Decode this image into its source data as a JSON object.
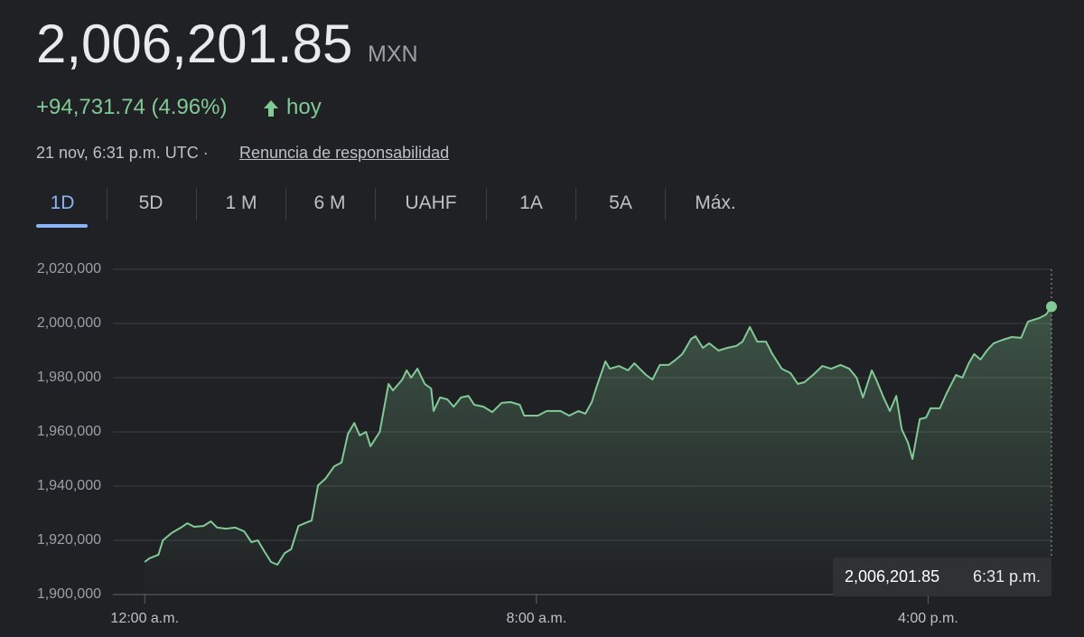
{
  "header": {
    "price": "2,006,201.85",
    "currency": "MXN",
    "change": "+94,731.74 (4.96%)",
    "period": "hoy",
    "timestamp": "21 nov, 6:31 p.m. UTC ·",
    "disclaimer": "Renuncia de responsabilidad"
  },
  "tabs": [
    "1D",
    "5D",
    "1 M",
    "6 M",
    "UAHF",
    "1A",
    "5A",
    "Máx."
  ],
  "chart_data": {
    "type": "line",
    "color": "#81c995",
    "grid": true,
    "x": [
      0,
      0.09,
      0.28,
      0.37,
      0.55,
      0.74,
      0.87,
      1.01,
      1.2,
      1.35,
      1.48,
      1.66,
      1.85,
      2.03,
      2.18,
      2.31,
      2.44,
      2.58,
      2.71,
      2.86,
      2.99,
      3.14,
      3.32,
      3.41,
      3.54,
      3.69,
      3.87,
      4.02,
      4.15,
      4.28,
      4.39,
      4.52,
      4.61,
      4.8,
      4.98,
      5.07,
      5.26,
      5.35,
      5.44,
      5.57,
      5.72,
      5.85,
      5.9,
      6.03,
      6.18,
      6.31,
      6.46,
      6.61,
      6.73,
      6.92,
      7.1,
      7.29,
      7.47,
      7.66,
      7.75,
      8.03,
      8.21,
      8.49,
      8.67,
      8.86,
      9.0,
      9.13,
      9.23,
      9.41,
      9.5,
      9.69,
      9.87,
      10.0,
      10.24,
      10.37,
      10.52,
      10.7,
      10.85,
      10.98,
      11.16,
      11.25,
      11.4,
      11.53,
      11.72,
      11.9,
      12.08,
      12.21,
      12.36,
      12.51,
      12.69,
      12.82,
      13.01,
      13.19,
      13.34,
      13.47,
      13.65,
      13.84,
      14.02,
      14.21,
      14.39,
      14.54,
      14.67,
      14.85,
      14.94,
      15.09,
      15.22,
      15.35,
      15.46,
      15.59,
      15.68,
      15.83,
      15.96,
      16.05,
      16.24,
      16.38,
      16.57,
      16.7,
      16.83,
      16.94,
      17.07,
      17.2,
      17.34,
      17.53,
      17.71,
      17.9,
      18.04,
      18.27,
      18.41,
      18.52
    ],
    "values": [
      1912000,
      1913300,
      1914700,
      1920000,
      1922700,
      1924700,
      1926300,
      1925000,
      1925300,
      1927000,
      1924700,
      1924300,
      1924700,
      1923300,
      1919300,
      1920000,
      1916000,
      1912000,
      1911000,
      1915300,
      1916700,
      1925300,
      1926700,
      1927300,
      1940300,
      1942700,
      1947300,
      1948700,
      1959300,
      1963300,
      1958700,
      1960000,
      1954700,
      1960000,
      1977700,
      1975300,
      1979300,
      1982700,
      1980000,
      1983300,
      1977700,
      1976000,
      1967700,
      1972700,
      1972000,
      1969300,
      1972700,
      1973300,
      1970000,
      1969300,
      1967300,
      1970700,
      1971000,
      1970000,
      1966000,
      1966000,
      1967700,
      1967700,
      1966000,
      1967700,
      1966700,
      1971000,
      1976700,
      1986000,
      1983300,
      1984300,
      1982700,
      1985300,
      1981000,
      1979300,
      1984700,
      1984700,
      1986700,
      1988700,
      1994300,
      1995300,
      1991000,
      1992700,
      1990000,
      1991000,
      1991700,
      1993300,
      1998700,
      1993300,
      1993300,
      1988700,
      1983300,
      1981700,
      1977700,
      1978300,
      1981000,
      1984300,
      1983300,
      1984700,
      1983300,
      1980000,
      1972700,
      1982700,
      1979300,
      1972700,
      1967700,
      1973300,
      1961000,
      1956000,
      1950000,
      1964700,
      1965300,
      1968700,
      1968700,
      1974300,
      1981000,
      1980000,
      1985300,
      1988700,
      1986700,
      1990000,
      1992700,
      1994000,
      1995000,
      1994700,
      2000700,
      2002000,
      2003300,
      2006201.85
    ],
    "xlim": [
      -0.65,
      18.52
    ],
    "xticks": [
      {
        "value": 0,
        "label": "12:00 a.m."
      },
      {
        "value": 8,
        "label": "8:00 a.m."
      },
      {
        "value": 16,
        "label": "4:00 p.m."
      }
    ],
    "ylim": [
      1900000,
      2020000
    ],
    "yticks": [
      {
        "value": 1900000,
        "label": "1,900,000"
      },
      {
        "value": 1920000,
        "label": "1,920,000"
      },
      {
        "value": 1940000,
        "label": "1,940,000"
      },
      {
        "value": 1960000,
        "label": "1,960,000"
      },
      {
        "value": 1980000,
        "label": "1,980,000"
      },
      {
        "value": 2000000,
        "label": "2,000,000"
      },
      {
        "value": 2020000,
        "label": "2,020,000"
      }
    ],
    "tooltip": {
      "value": "2,006,201.85",
      "time": "6:31 p.m."
    }
  }
}
